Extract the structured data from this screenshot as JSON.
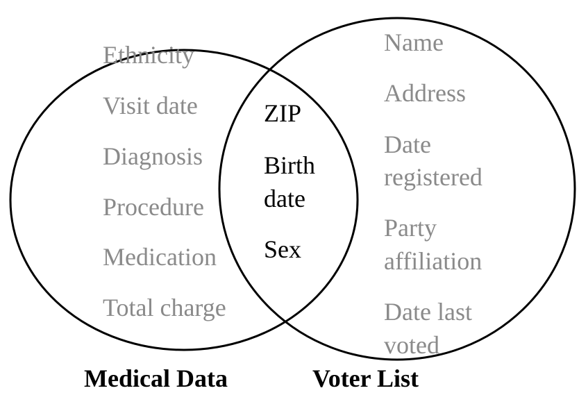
{
  "medical": {
    "caption": "Medical Data",
    "items": [
      "Ethnicity",
      "Visit date",
      "Diagnosis",
      "Procedure",
      "Medication",
      "Total charge"
    ]
  },
  "shared": {
    "items": [
      "ZIP",
      "Birth",
      "date",
      "Sex"
    ]
  },
  "voter": {
    "caption": "Voter List",
    "items": [
      "Name",
      "Address",
      "Date",
      "registered",
      "Party",
      "affiliation",
      "Date last",
      "voted"
    ]
  },
  "colors": {
    "unique_text": "#8a8a8a",
    "shared_text": "#000000",
    "outline": "#000000"
  }
}
